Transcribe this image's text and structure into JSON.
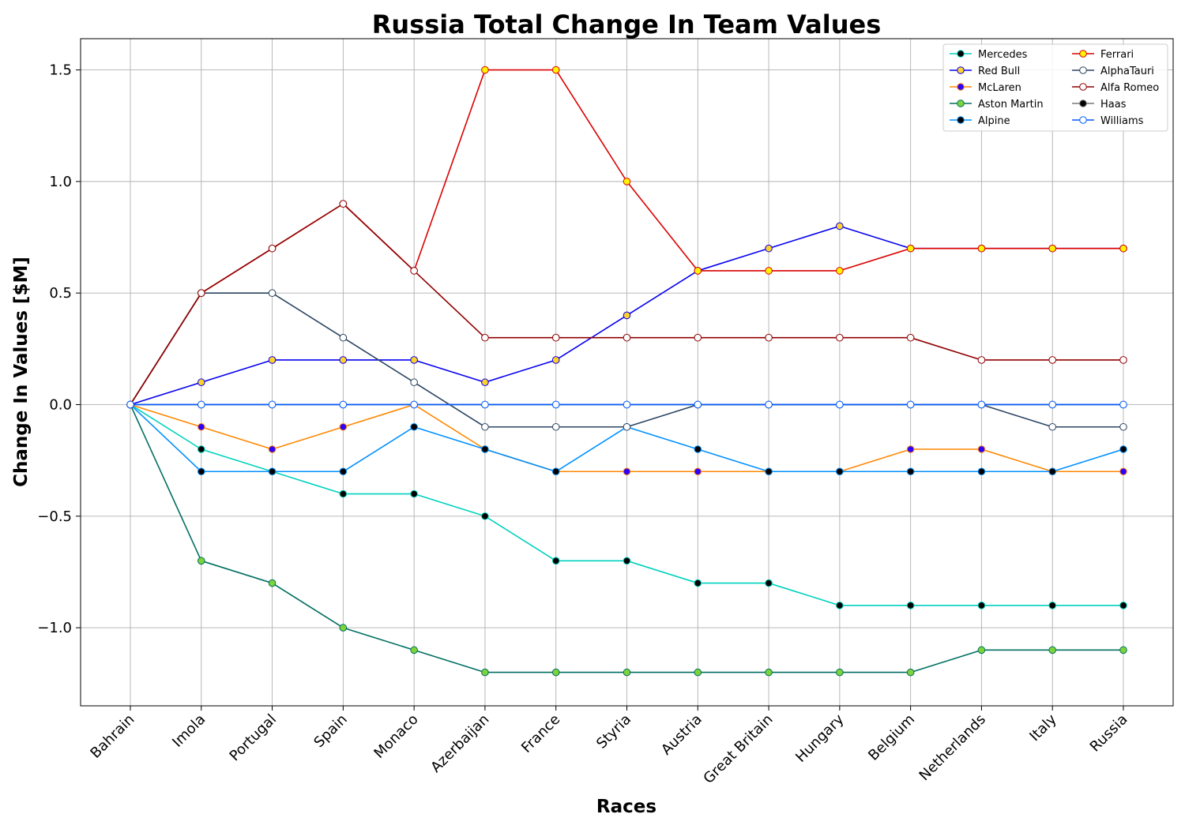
{
  "chart_data": {
    "type": "line",
    "title": "Russia Total Change In Team Values",
    "xlabel": "Races",
    "ylabel": "Change In Values [$M]",
    "categories": [
      "Bahrain",
      "Imola",
      "Portugal",
      "Spain",
      "Monaco",
      "Azerbaijan",
      "France",
      "Styria",
      "Austria",
      "Great Britain",
      "Hungary",
      "Belgium",
      "Netherlands",
      "Italy",
      "Russia"
    ],
    "ylim": [
      -1.35,
      1.64
    ],
    "yticks": [
      -1.0,
      -0.5,
      0.0,
      0.5,
      1.0,
      1.5
    ],
    "ytick_labels": [
      "−1.0",
      "−0.5",
      "0.0",
      "0.5",
      "1.0",
      "1.5"
    ],
    "grid": true,
    "legend_position": "top-right",
    "series": [
      {
        "name": "Mercedes",
        "color": "#00d2be",
        "marker": "#000000",
        "values": [
          0,
          -0.2,
          -0.3,
          -0.4,
          -0.4,
          -0.5,
          -0.7,
          -0.7,
          -0.8,
          -0.8,
          -0.9,
          -0.9,
          -0.9,
          -0.9,
          -0.9
        ]
      },
      {
        "name": "Red Bull",
        "color": "#0600ef",
        "marker": "#ffd12e",
        "values": [
          0,
          0.1,
          0.2,
          0.2,
          0.2,
          0.1,
          0.2,
          0.4,
          0.6,
          0.7,
          0.8,
          0.7,
          0.7,
          0.7,
          0.7
        ]
      },
      {
        "name": "McLaren",
        "color": "#ff8700",
        "marker": "#2b00ff",
        "values": [
          0,
          -0.1,
          -0.2,
          -0.1,
          0.0,
          -0.2,
          -0.3,
          -0.3,
          -0.3,
          -0.3,
          -0.3,
          -0.2,
          -0.2,
          -0.3,
          -0.3
        ]
      },
      {
        "name": "Aston Martin",
        "color": "#006f62",
        "marker": "#7cd33a",
        "values": [
          0,
          -0.7,
          -0.8,
          -1.0,
          -1.1,
          -1.2,
          -1.2,
          -1.2,
          -1.2,
          -1.2,
          -1.2,
          -1.2,
          -1.1,
          -1.1,
          -1.1
        ]
      },
      {
        "name": "Alpine",
        "color": "#0090ff",
        "marker": "#000000",
        "values": [
          0,
          -0.3,
          -0.3,
          -0.3,
          -0.1,
          -0.2,
          -0.3,
          -0.1,
          -0.2,
          -0.3,
          -0.3,
          -0.3,
          -0.3,
          -0.3,
          -0.2
        ]
      },
      {
        "name": "Ferrari",
        "color": "#dc0000",
        "marker": "#fff500",
        "values": [
          0,
          0.5,
          0.7,
          0.9,
          0.6,
          1.5,
          1.5,
          1.0,
          0.6,
          0.6,
          0.6,
          0.7,
          0.7,
          0.7,
          0.7
        ]
      },
      {
        "name": "AlphaTauri",
        "color": "#2b4562",
        "marker": "#ffffff",
        "values": [
          0,
          0.5,
          0.5,
          0.3,
          0.1,
          -0.1,
          -0.1,
          -0.1,
          0.0,
          0.0,
          0.0,
          0.0,
          0.0,
          -0.1,
          -0.1
        ]
      },
      {
        "name": "Alfa Romeo",
        "color": "#900000",
        "marker": "#ffffff",
        "values": [
          0,
          0.5,
          0.7,
          0.9,
          0.6,
          0.3,
          0.3,
          0.3,
          0.3,
          0.3,
          0.3,
          0.3,
          0.2,
          0.2,
          0.2
        ]
      },
      {
        "name": "Haas",
        "color": "#787878",
        "marker": "#000000",
        "values": [
          0,
          0.0,
          0.0,
          0.0,
          0.0,
          0.0,
          0.0,
          0.0,
          0.0,
          0.0,
          0.0,
          0.0,
          0.0,
          0.0,
          0.0
        ]
      },
      {
        "name": "Williams",
        "color": "#005aff",
        "marker": "#ffffff",
        "values": [
          0,
          0.0,
          0.0,
          0.0,
          0.0,
          0.0,
          0.0,
          0.0,
          0.0,
          0.0,
          0.0,
          0.0,
          0.0,
          0.0,
          0.0
        ]
      }
    ]
  }
}
